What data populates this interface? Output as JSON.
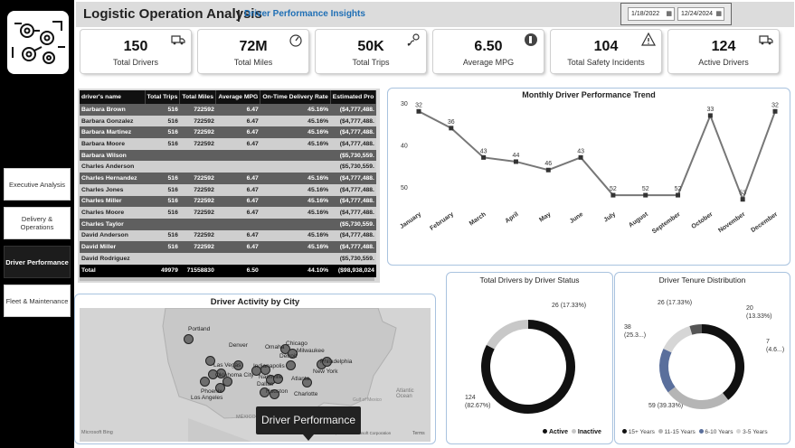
{
  "header": {
    "title": "Logistic Operation Analysis",
    "separator": "|",
    "subtitle": "Driver Performance Insights",
    "date_start": "1/18/2022",
    "date_end": "12/24/2024"
  },
  "sidebar": {
    "items": [
      {
        "label": "Executive Analysis"
      },
      {
        "label": "Delivery & Operations"
      },
      {
        "label": "Driver Performance"
      },
      {
        "label": "Fleet & Maintenance"
      }
    ],
    "active_index": 2
  },
  "kpis": [
    {
      "value": "150",
      "label": "Total Drivers",
      "icon": "truck-icon"
    },
    {
      "value": "72M",
      "label": "Total Miles",
      "icon": "speedometer-icon"
    },
    {
      "value": "50K",
      "label": "Total Trips",
      "icon": "route-icon"
    },
    {
      "value": "6.50",
      "label": "Average MPG",
      "icon": "fuel-gauge-icon"
    },
    {
      "value": "104",
      "label": "Total Safety Incidents",
      "icon": "warning-icon"
    },
    {
      "value": "124",
      "label": "Active Drivers",
      "icon": "truck-icon"
    }
  ],
  "table": {
    "columns": [
      "driver's name",
      "Total Trips",
      "Total Miles",
      "Average MPG",
      "On-Time Delivery Rate",
      "Estimated Pro"
    ],
    "rows": [
      {
        "name": "Barbara Brown",
        "trips": "516",
        "miles": "722592",
        "mpg": "6.47",
        "rate": "45.16%",
        "est": "($4,777,488.",
        "shade": "dark"
      },
      {
        "name": "Barbara Gonzalez",
        "trips": "516",
        "miles": "722592",
        "mpg": "6.47",
        "rate": "45.16%",
        "est": "($4,777,488.",
        "shade": "light"
      },
      {
        "name": "Barbara Martinez",
        "trips": "516",
        "miles": "722592",
        "mpg": "6.47",
        "rate": "45.16%",
        "est": "($4,777,488.",
        "shade": "dark"
      },
      {
        "name": "Barbara Moore",
        "trips": "516",
        "miles": "722592",
        "mpg": "6.47",
        "rate": "45.16%",
        "est": "($4,777,488.",
        "shade": "light"
      },
      {
        "name": "Barbara Wilson",
        "trips": "",
        "miles": "",
        "mpg": "",
        "rate": "",
        "est": "($5,730,559.",
        "shade": "dark"
      },
      {
        "name": "Charles Anderson",
        "trips": "",
        "miles": "",
        "mpg": "",
        "rate": "",
        "est": "($5,730,559.",
        "shade": "light"
      },
      {
        "name": "Charles Hernandez",
        "trips": "516",
        "miles": "722592",
        "mpg": "6.47",
        "rate": "45.16%",
        "est": "($4,777,488.",
        "shade": "dark"
      },
      {
        "name": "Charles Jones",
        "trips": "516",
        "miles": "722592",
        "mpg": "6.47",
        "rate": "45.16%",
        "est": "($4,777,488.",
        "shade": "light"
      },
      {
        "name": "Charles Miller",
        "trips": "516",
        "miles": "722592",
        "mpg": "6.47",
        "rate": "45.16%",
        "est": "($4,777,488.",
        "shade": "dark"
      },
      {
        "name": "Charles Moore",
        "trips": "516",
        "miles": "722592",
        "mpg": "6.47",
        "rate": "45.16%",
        "est": "($4,777,488.",
        "shade": "light"
      },
      {
        "name": "Charles Taylor",
        "trips": "",
        "miles": "",
        "mpg": "",
        "rate": "",
        "est": "($5,730,559.",
        "shade": "dark"
      },
      {
        "name": "David Anderson",
        "trips": "516",
        "miles": "722592",
        "mpg": "6.47",
        "rate": "45.16%",
        "est": "($4,777,488.",
        "shade": "light"
      },
      {
        "name": "David Miller",
        "trips": "516",
        "miles": "722592",
        "mpg": "6.47",
        "rate": "45.16%",
        "est": "($4,777,488.",
        "shade": "dark"
      },
      {
        "name": "David Rodriguez",
        "trips": "",
        "miles": "",
        "mpg": "",
        "rate": "",
        "est": "($5,730,559.",
        "shade": "light"
      }
    ],
    "total": {
      "name": "Total",
      "trips": "49979",
      "miles": "71558830",
      "mpg": "6.50",
      "rate": "44.10%",
      "est": "($98,938,024"
    }
  },
  "map": {
    "title": "Driver Activity by City",
    "cities": [
      "Portland",
      "Denver",
      "Omaha",
      "Chicago",
      "Milwaukee",
      "Detroit",
      "Las Vegas",
      "Indianapolis",
      "Philadelphia",
      "New York",
      "Oklahoma City",
      "Nashville",
      "Atlanta",
      "Phoenix",
      "Houston",
      "Charlotte",
      "Los Angeles",
      "Dallas"
    ],
    "ocean_label": "Atlantic Ocean",
    "mexico_label": "MÉXICO",
    "gulf_label": "Gulf of Mexico",
    "attribution": "© 2025 TomTom, © 2025 Microsoft Corporation",
    "terms": "Terms",
    "bing_label": "Microsoft Bing",
    "tooltip": "Driver Performance"
  },
  "chart_data": [
    {
      "type": "line",
      "title": "Monthly Driver Performance Trend",
      "categories": [
        "January",
        "February",
        "March",
        "April",
        "May",
        "June",
        "July",
        "August",
        "September",
        "October",
        "November",
        "December"
      ],
      "values": [
        32,
        36,
        43,
        44,
        46,
        43,
        52,
        52,
        52,
        33,
        53,
        32
      ],
      "ylim": [
        30,
        55
      ],
      "yticks": [
        30,
        40,
        50
      ],
      "y_inverted": true,
      "color": "#777777"
    },
    {
      "type": "pie",
      "title": "Total Drivers by Driver Status",
      "slices": [
        {
          "label": "Active",
          "value": 124,
          "display": "124\n(82.67%)",
          "color": "#111111"
        },
        {
          "label": "Inactive",
          "value": 26,
          "display": "26 (17.33%)",
          "color": "#c8c8c8"
        }
      ],
      "legend_position": "bottom-right"
    },
    {
      "type": "pie",
      "title": "Driver Tenure Distribution",
      "slices": [
        {
          "label": "15+ Years",
          "value": 59,
          "display": "59 (39.33%)",
          "color": "#111111"
        },
        {
          "label": "11-15 Years",
          "value": 38,
          "display": "38\n(25.3...)",
          "color": "#b5b5b5"
        },
        {
          "label": "6-10 Years",
          "value": 26,
          "display": "26 (17.33%)",
          "color": "#5a6f9c"
        },
        {
          "label": "3-5 Years",
          "value": 20,
          "display": "20\n(13.33%)",
          "color": "#d6d6d6"
        },
        {
          "label": "",
          "value": 7,
          "display": "7\n(4.6...)",
          "color": "#555555"
        }
      ],
      "legend_position": "bottom"
    }
  ]
}
